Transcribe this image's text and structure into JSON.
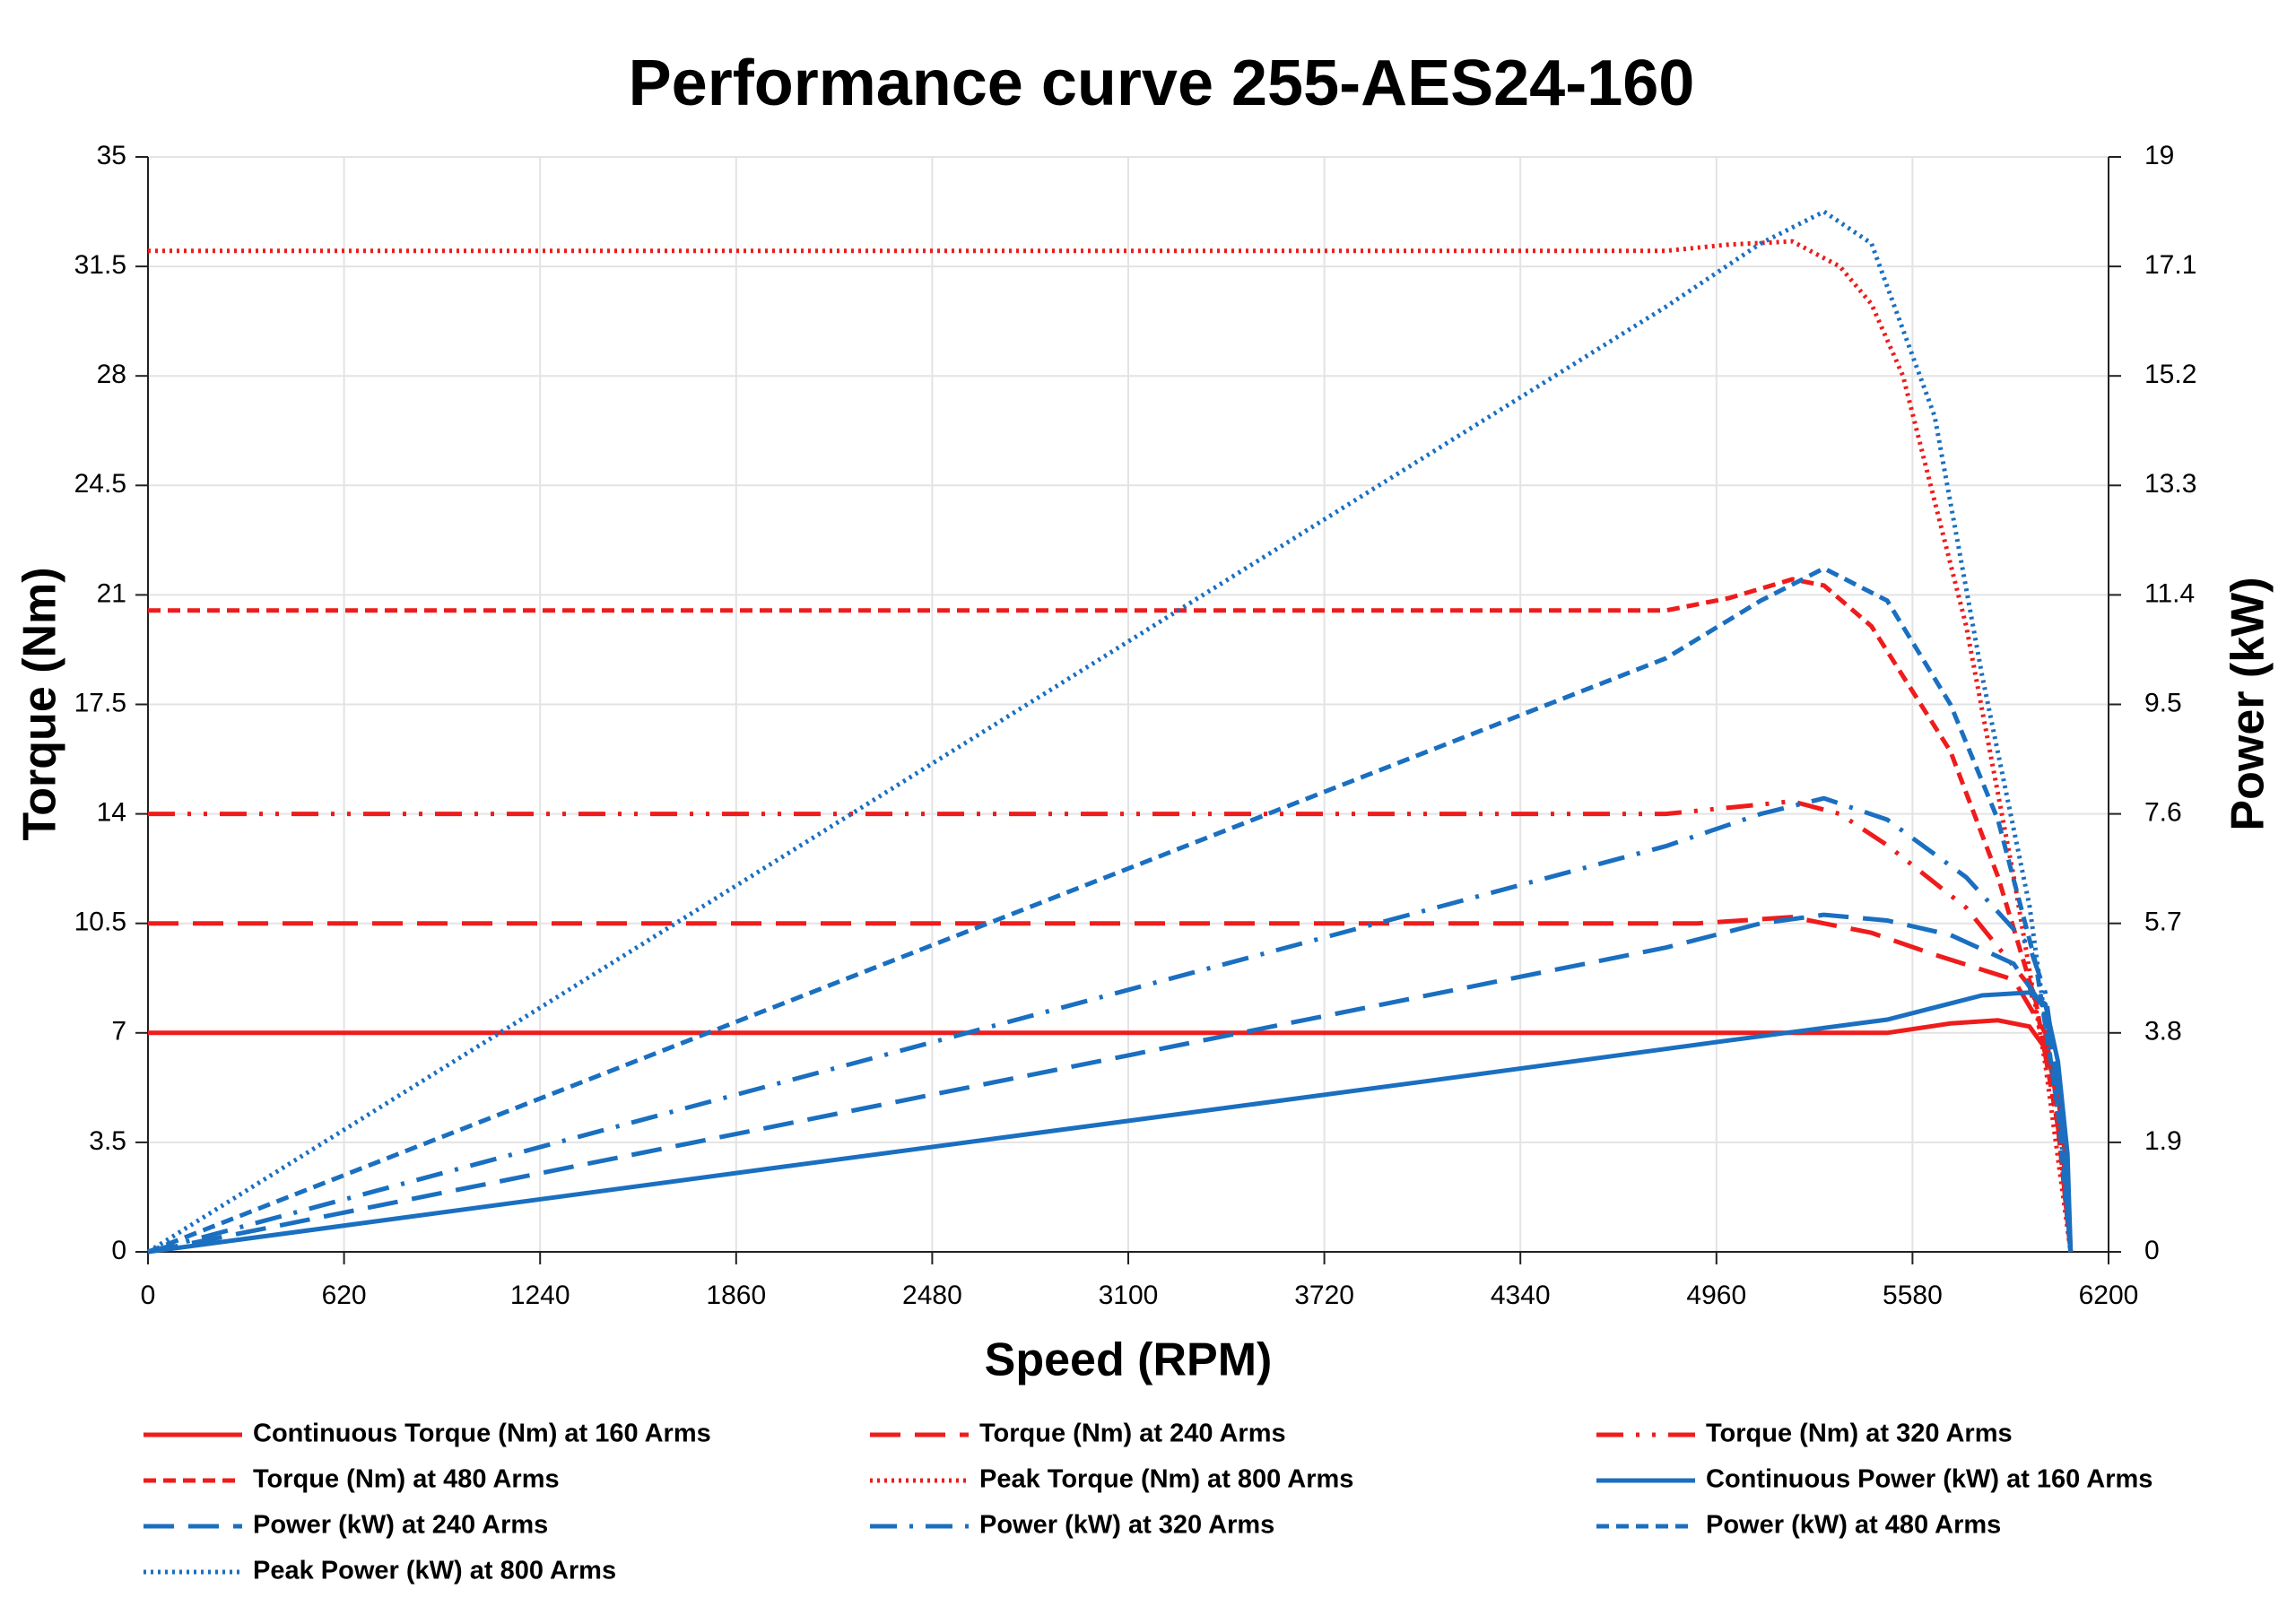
{
  "chart_data": {
    "type": "line",
    "title": "Performance curve 255-AES24-160",
    "x_label": "Speed (RPM)",
    "y_label": "Torque (Nm)",
    "y2_label": "Power (kW)",
    "xlim": [
      0,
      6200
    ],
    "xticks": [
      0,
      620,
      1240,
      1860,
      2480,
      3100,
      3720,
      4340,
      4960,
      5580,
      6200
    ],
    "ylim": [
      0,
      35
    ],
    "yticks": [
      0,
      3.5,
      7,
      10.5,
      14,
      17.5,
      21,
      24.5,
      28,
      31.5,
      35
    ],
    "y2lim": [
      0,
      19
    ],
    "y2ticks": [
      0,
      1.9,
      3.8,
      5.7,
      7.6,
      9.5,
      11.4,
      13.3,
      15.2,
      17.1,
      19
    ],
    "grid": true,
    "series": [
      {
        "name": "Continuous Torque (Nm) at 160 Arms",
        "color": "#ee1c1c",
        "style": "solid",
        "x": [
          0,
          5500,
          5700,
          5850,
          5950,
          6000,
          6040,
          6070,
          6080
        ],
        "values": [
          7,
          7,
          7.3,
          7.4,
          7.2,
          6.5,
          5,
          2.5,
          0
        ]
      },
      {
        "name": "Torque (Nm) at 240 Arms",
        "color": "#ee1c1c",
        "style": "long-dash",
        "x": [
          0,
          4900,
          5200,
          5450,
          5650,
          5900,
          6000,
          6050,
          6080
        ],
        "values": [
          10.5,
          10.5,
          10.7,
          10.2,
          9.5,
          8.7,
          7,
          4,
          0
        ]
      },
      {
        "name": "Torque (Nm) at 320 Arms",
        "color": "#ee1c1c",
        "style": "dash-dot-dot",
        "x": [
          0,
          4800,
          5000,
          5200,
          5350,
          5500,
          5750,
          5950,
          6030,
          6080
        ],
        "values": [
          14,
          14,
          14.2,
          14.4,
          14,
          13,
          11,
          8.5,
          5,
          0
        ]
      },
      {
        "name": "Torque (Nm) at 480 Arms",
        "color": "#ee1c1c",
        "style": "short-dash",
        "x": [
          0,
          4800,
          5000,
          5200,
          5300,
          5450,
          5700,
          5850,
          5970,
          6040,
          6080
        ],
        "values": [
          20.5,
          20.5,
          20.9,
          21.5,
          21.3,
          20,
          16,
          12,
          8,
          4,
          0
        ]
      },
      {
        "name": "Peak Torque (Nm) at 800 Arms",
        "color": "#ee1c1c",
        "style": "dot",
        "x": [
          0,
          4800,
          5000,
          5200,
          5350,
          5450,
          5550,
          5750,
          5900,
          6000,
          6080
        ],
        "values": [
          32,
          32,
          32.2,
          32.3,
          31.5,
          30.3,
          28,
          20,
          12,
          6,
          0
        ]
      },
      {
        "name": "Continuous Power (kW) at 160 Arms",
        "color": "#1a6fc0",
        "style": "solid",
        "axis": "y2",
        "x": [
          0,
          2000,
          4000,
          5000,
          5500,
          5800,
          5950,
          6000,
          6040,
          6070,
          6080
        ],
        "values": [
          0,
          1.47,
          2.93,
          3.67,
          4.03,
          4.45,
          4.5,
          4.3,
          3.3,
          1.7,
          0
        ]
      },
      {
        "name": "Power (kW) at 240 Arms",
        "color": "#1a6fc0",
        "style": "long-dash",
        "axis": "y2",
        "x": [
          0,
          4800,
          5100,
          5300,
          5500,
          5700,
          5900,
          6000,
          6050,
          6080
        ],
        "values": [
          0,
          5.28,
          5.7,
          5.85,
          5.75,
          5.5,
          5,
          4.2,
          2.5,
          0
        ]
      },
      {
        "name": "Power (kW) at 320 Arms",
        "color": "#1a6fc0",
        "style": "dash-dot",
        "axis": "y2",
        "x": [
          0,
          4800,
          5100,
          5300,
          5500,
          5750,
          5950,
          6000,
          6050,
          6080
        ],
        "values": [
          0,
          7.04,
          7.6,
          7.87,
          7.5,
          6.5,
          5.3,
          4.5,
          2.5,
          0
        ]
      },
      {
        "name": "Power (kW) at 480 Arms",
        "color": "#1a6fc0",
        "style": "short-dash",
        "axis": "y2",
        "x": [
          0,
          4800,
          5100,
          5300,
          5500,
          5700,
          5850,
          5970,
          6040,
          6080
        ],
        "values": [
          0,
          10.3,
          11.3,
          11.86,
          11.3,
          9.5,
          7.5,
          5,
          2.5,
          0
        ]
      },
      {
        "name": "Peak Power (kW) at 800 Arms",
        "color": "#1a6fc0",
        "style": "dot",
        "axis": "y2",
        "x": [
          0,
          4800,
          5100,
          5300,
          5450,
          5650,
          5800,
          5950,
          6000,
          6050,
          6080
        ],
        "values": [
          0,
          16.4,
          17.5,
          18.05,
          17.5,
          14.5,
          10,
          6,
          4,
          2,
          0
        ]
      }
    ]
  }
}
